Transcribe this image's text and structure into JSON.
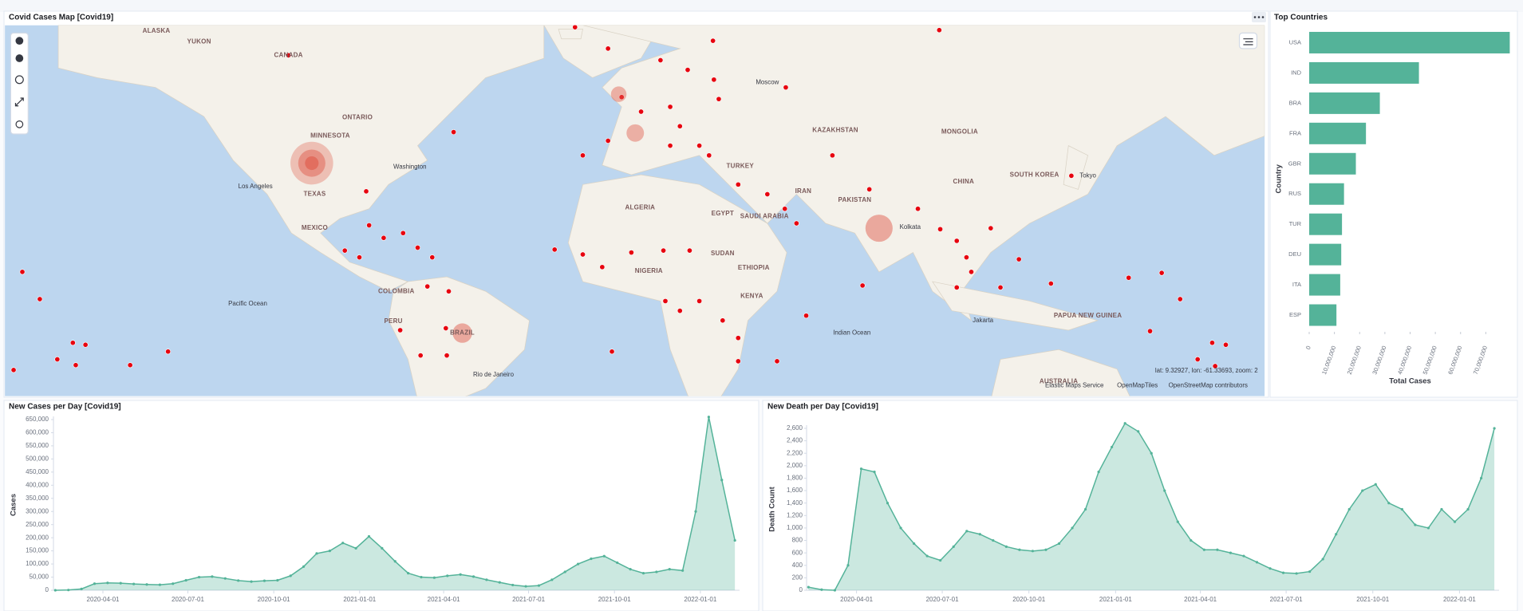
{
  "map": {
    "title": "Covid Cases Map [Covid19]",
    "labels": [
      "ALASKA",
      "YUKON",
      "CANADA",
      "ONTARIO",
      "MINNESOTA",
      "Washington",
      "Los Angeles",
      "TEXAS",
      "MEXICO",
      "COLOMBIA",
      "PERU",
      "BRAZIL",
      "Rio de Janeiro",
      "Pacific Ocean",
      "Moscow",
      "TURKEY",
      "IRAN",
      "SAUDI ARABIA",
      "EGYPT",
      "NIGERIA",
      "ETHIOPIA",
      "KENYA",
      "KAZAKHSTAN",
      "MONGOLIA",
      "CHINA",
      "SOUTH KOREA",
      "Tokyo",
      "PAKISTAN",
      "Kolkata",
      "Jakarta",
      "Indian Ocean",
      "AUSTRALIA",
      "PAPUA NEW GUINEA",
      "ALGERIA",
      "SUDAN"
    ],
    "coordinates": "lat: 9.32927, lon: -61.33693, zoom: 2",
    "attribution": [
      "Elastic Maps Service",
      "OpenMapTiles",
      "OpenStreetMap contributors"
    ]
  },
  "chart_data": [
    {
      "type": "bar",
      "orientation": "horizontal",
      "title": "Top Countries",
      "x_label": "Total Cases",
      "y_label": "Country",
      "categories": [
        "USA",
        "IND",
        "BRA",
        "FRA",
        "GBR",
        "RUS",
        "TUR",
        "DEU",
        "ITA",
        "ESP"
      ],
      "values": [
        79500000,
        43500000,
        28000000,
        22500000,
        18500000,
        13800000,
        13000000,
        12700000,
        12300000,
        10800000
      ],
      "color": "#54b399",
      "xlim": [
        0,
        80000000
      ],
      "xticks": [
        0,
        {
          "value": 10000000,
          "label": "10,000,000"
        },
        {
          "value": 20000000,
          "label": "20,000,000"
        },
        {
          "value": 30000000,
          "label": "30,000,000"
        },
        {
          "value": 40000000,
          "label": "40,000,000"
        },
        {
          "value": 50000000,
          "label": "50,000,000"
        },
        {
          "value": 60000000,
          "label": "60,000,000"
        },
        {
          "value": 70000000,
          "label": "70,000,000"
        }
      ]
    },
    {
      "type": "area",
      "title": "New Cases per Day [Covid19]",
      "y_label": "Cases",
      "x": [
        "2020-02-10",
        "2020-02-24",
        "2020-03-09",
        "2020-03-23",
        "2020-04-06",
        "2020-04-20",
        "2020-05-04",
        "2020-05-18",
        "2020-06-01",
        "2020-06-15",
        "2020-06-29",
        "2020-07-13",
        "2020-07-27",
        "2020-08-10",
        "2020-08-24",
        "2020-09-07",
        "2020-09-21",
        "2020-10-05",
        "2020-10-19",
        "2020-11-02",
        "2020-11-16",
        "2020-11-30",
        "2020-12-14",
        "2020-12-28",
        "2021-01-11",
        "2021-01-25",
        "2021-02-08",
        "2021-02-22",
        "2021-03-08",
        "2021-03-22",
        "2021-04-05",
        "2021-04-19",
        "2021-05-03",
        "2021-05-17",
        "2021-05-31",
        "2021-06-14",
        "2021-06-28",
        "2021-07-12",
        "2021-07-26",
        "2021-08-09",
        "2021-08-23",
        "2021-09-06",
        "2021-09-20",
        "2021-10-04",
        "2021-10-18",
        "2021-11-01",
        "2021-11-15",
        "2021-11-29",
        "2021-12-13",
        "2021-12-27",
        "2022-01-10",
        "2022-01-24",
        "2022-02-07"
      ],
      "values": [
        0,
        1000,
        5000,
        25000,
        28000,
        27000,
        24000,
        22000,
        21000,
        25000,
        38000,
        50000,
        52000,
        45000,
        37000,
        33000,
        36000,
        38000,
        55000,
        90000,
        140000,
        150000,
        180000,
        160000,
        205000,
        160000,
        110000,
        65000,
        50000,
        48000,
        55000,
        60000,
        52000,
        40000,
        30000,
        20000,
        15000,
        18000,
        40000,
        70000,
        100000,
        120000,
        130000,
        105000,
        80000,
        65000,
        70000,
        80000,
        75000,
        300000,
        660000,
        420000,
        190000
      ],
      "color": "#54b399",
      "grid": false,
      "xlim": [
        "2020-02-08",
        "2022-02-12"
      ],
      "xticks": [
        "2020-04-01",
        "2020-07-01",
        "2020-10-01",
        "2021-01-01",
        "2021-04-01",
        "2021-07-01",
        "2021-10-01",
        "2022-01-01"
      ],
      "ylim": [
        0,
        650000
      ],
      "yticks": [
        0,
        {
          "value": 50000,
          "label": "50,000"
        },
        {
          "value": 100000,
          "label": "100,000"
        },
        {
          "value": 150000,
          "label": "150,000"
        },
        {
          "value": 200000,
          "label": "200,000"
        },
        {
          "value": 250000,
          "label": "250,000"
        },
        {
          "value": 300000,
          "label": "300,000"
        },
        {
          "value": 350000,
          "label": "350,000"
        },
        {
          "value": 400000,
          "label": "400,000"
        },
        {
          "value": 450000,
          "label": "450,000"
        },
        {
          "value": 500000,
          "label": "500,000"
        },
        {
          "value": 550000,
          "label": "550,000"
        },
        {
          "value": 600000,
          "label": "600,000"
        },
        {
          "value": 650000,
          "label": "650,000"
        }
      ]
    },
    {
      "type": "area",
      "title": "New Death per Day [Covid19]",
      "y_label": "Death Count",
      "x": [
        "2020-02-10",
        "2020-02-24",
        "2020-03-09",
        "2020-03-23",
        "2020-04-06",
        "2020-04-20",
        "2020-05-04",
        "2020-05-18",
        "2020-06-01",
        "2020-06-15",
        "2020-06-29",
        "2020-07-13",
        "2020-07-27",
        "2020-08-10",
        "2020-08-24",
        "2020-09-07",
        "2020-09-21",
        "2020-10-05",
        "2020-10-19",
        "2020-11-02",
        "2020-11-16",
        "2020-11-30",
        "2020-12-14",
        "2020-12-28",
        "2021-01-11",
        "2021-01-25",
        "2021-02-08",
        "2021-02-22",
        "2021-03-08",
        "2021-03-22",
        "2021-04-05",
        "2021-04-19",
        "2021-05-03",
        "2021-05-17",
        "2021-05-31",
        "2021-06-14",
        "2021-06-28",
        "2021-07-12",
        "2021-07-26",
        "2021-08-09",
        "2021-08-23",
        "2021-09-06",
        "2021-09-20",
        "2021-10-04",
        "2021-10-18",
        "2021-11-01",
        "2021-11-15",
        "2021-11-29",
        "2021-12-13",
        "2021-12-27",
        "2022-01-10",
        "2022-01-24",
        "2022-02-07"
      ],
      "values": [
        50,
        10,
        0,
        400,
        1950,
        1900,
        1400,
        1000,
        750,
        550,
        480,
        700,
        950,
        900,
        800,
        700,
        650,
        630,
        650,
        750,
        1000,
        1300,
        1900,
        2300,
        2680,
        2550,
        2200,
        1600,
        1100,
        800,
        650,
        650,
        600,
        550,
        450,
        350,
        280,
        270,
        300,
        500,
        900,
        1300,
        1600,
        1700,
        1400,
        1300,
        1050,
        1000,
        1300,
        1100,
        1300,
        1800,
        2600
      ],
      "color": "#54b399",
      "grid": false,
      "xlim": [
        "2020-02-08",
        "2022-02-12"
      ],
      "xticks": [
        "2020-04-01",
        "2020-07-01",
        "2020-10-01",
        "2021-01-01",
        "2021-04-01",
        "2021-07-01",
        "2021-10-01",
        "2022-01-01"
      ],
      "ylim": [
        0,
        2600
      ],
      "yticks": [
        0,
        200,
        400,
        600,
        800,
        {
          "value": 1000,
          "label": "1,000"
        },
        {
          "value": 1200,
          "label": "1,200"
        },
        {
          "value": 1400,
          "label": "1,400"
        },
        {
          "value": 1600,
          "label": "1,600"
        },
        {
          "value": 1800,
          "label": "1,800"
        },
        {
          "value": 2000,
          "label": "2,000"
        },
        {
          "value": 2200,
          "label": "2,200"
        },
        {
          "value": 2400,
          "label": "2,400"
        },
        {
          "value": 2600,
          "label": "2,600"
        }
      ]
    }
  ]
}
